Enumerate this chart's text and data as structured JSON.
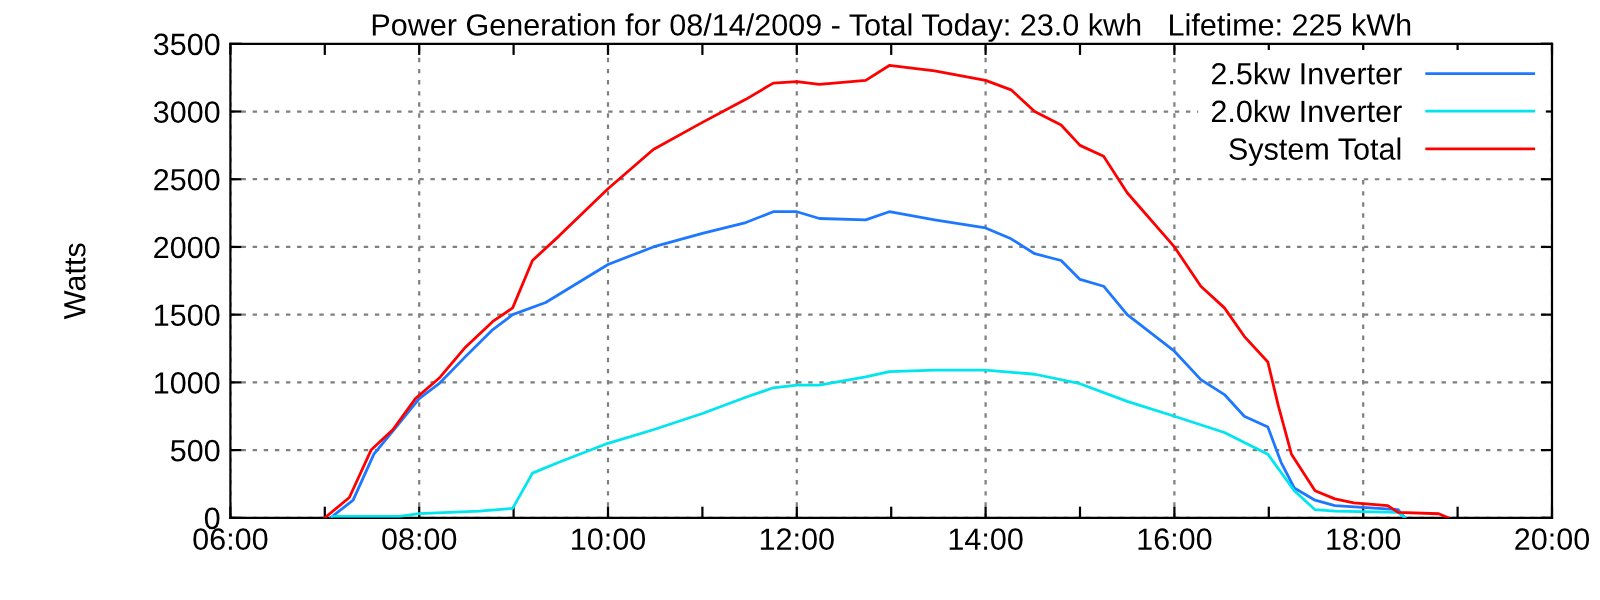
{
  "chart_data": {
    "type": "line",
    "title": "Power Generation for 08/14/2009 - Total Today: 23.0 kwh   Lifetime: 225 kWh",
    "ylabel": "Watts",
    "xlim": [
      6,
      20
    ],
    "xticks": [
      {
        "value": 6,
        "label": "06:00"
      },
      {
        "value": 7,
        "label": null
      },
      {
        "value": 8,
        "label": "08:00"
      },
      {
        "value": 9,
        "label": null
      },
      {
        "value": 10,
        "label": "10:00"
      },
      {
        "value": 11,
        "label": null
      },
      {
        "value": 12,
        "label": "12:00"
      },
      {
        "value": 13,
        "label": null
      },
      {
        "value": 14,
        "label": "14:00"
      },
      {
        "value": 15,
        "label": null
      },
      {
        "value": 16,
        "label": "16:00"
      },
      {
        "value": 17,
        "label": null
      },
      {
        "value": 18,
        "label": "18:00"
      },
      {
        "value": 19,
        "label": null
      },
      {
        "value": 20,
        "label": "20:00"
      }
    ],
    "ylim": [
      0,
      3500
    ],
    "yticks": [
      0,
      500,
      1000,
      1500,
      2000,
      2500,
      3000,
      3500
    ],
    "grid": true,
    "legend": "top right",
    "line_style": "solid",
    "series": [
      {
        "name": "2.5kw Inverter",
        "color": "#1e78ff",
        "x": [
          7.06,
          7.3,
          7.52,
          7.79,
          8.0,
          8.21,
          8.49,
          8.78,
          8.99,
          9.34,
          10.0,
          10.48,
          11.0,
          11.46,
          11.75,
          12.0,
          12.24,
          12.73,
          12.98,
          13.46,
          14.0,
          14.27,
          14.52,
          14.8,
          15.0,
          15.25,
          15.5,
          16.0,
          16.28,
          16.53,
          16.74,
          16.99,
          17.13,
          17.27,
          17.49,
          17.7,
          18.37,
          18.44
        ],
        "values": [
          0,
          130,
          470,
          700,
          880,
          990,
          1190,
          1390,
          1500,
          1590,
          1870,
          2000,
          2100,
          2180,
          2260,
          2260,
          2210,
          2200,
          2260,
          2200,
          2140,
          2060,
          1950,
          1900,
          1760,
          1710,
          1500,
          1230,
          1020,
          910,
          750,
          670,
          410,
          220,
          130,
          90,
          60,
          0
        ]
      },
      {
        "name": "2.0kw Inverter",
        "color": "#00e5ee",
        "x": [
          7.08,
          7.79,
          8.0,
          8.64,
          8.99,
          9.2,
          9.48,
          10.0,
          10.48,
          11.0,
          11.46,
          11.75,
          12.0,
          12.24,
          12.73,
          12.98,
          13.46,
          14.0,
          14.52,
          15.0,
          15.5,
          16.0,
          16.53,
          16.99,
          17.27,
          17.49,
          17.7,
          18.37,
          18.44
        ],
        "values": [
          10,
          10,
          30,
          50,
          70,
          330,
          410,
          550,
          650,
          770,
          890,
          960,
          980,
          980,
          1040,
          1080,
          1090,
          1090,
          1060,
          990,
          860,
          750,
          630,
          470,
          200,
          60,
          50,
          40,
          0
        ]
      },
      {
        "name": "System Total",
        "color": "#ff0000",
        "x": [
          7.0,
          7.26,
          7.49,
          7.72,
          7.96,
          8.21,
          8.49,
          8.78,
          8.99,
          9.2,
          9.48,
          10.0,
          10.48,
          11.0,
          11.46,
          11.75,
          12.0,
          12.24,
          12.73,
          12.98,
          13.46,
          14.0,
          14.27,
          14.52,
          14.8,
          15.0,
          15.25,
          15.5,
          16.0,
          16.28,
          16.53,
          16.74,
          16.99,
          17.1,
          17.24,
          17.49,
          17.7,
          17.9,
          18.26,
          18.37,
          18.8,
          18.9
        ],
        "values": [
          0,
          150,
          500,
          650,
          880,
          1030,
          1260,
          1450,
          1550,
          1900,
          2080,
          2430,
          2720,
          2920,
          3090,
          3210,
          3220,
          3200,
          3230,
          3340,
          3300,
          3230,
          3160,
          3000,
          2900,
          2750,
          2670,
          2400,
          2000,
          1710,
          1550,
          1340,
          1150,
          830,
          470,
          200,
          140,
          110,
          90,
          40,
          30,
          0
        ]
      }
    ]
  }
}
